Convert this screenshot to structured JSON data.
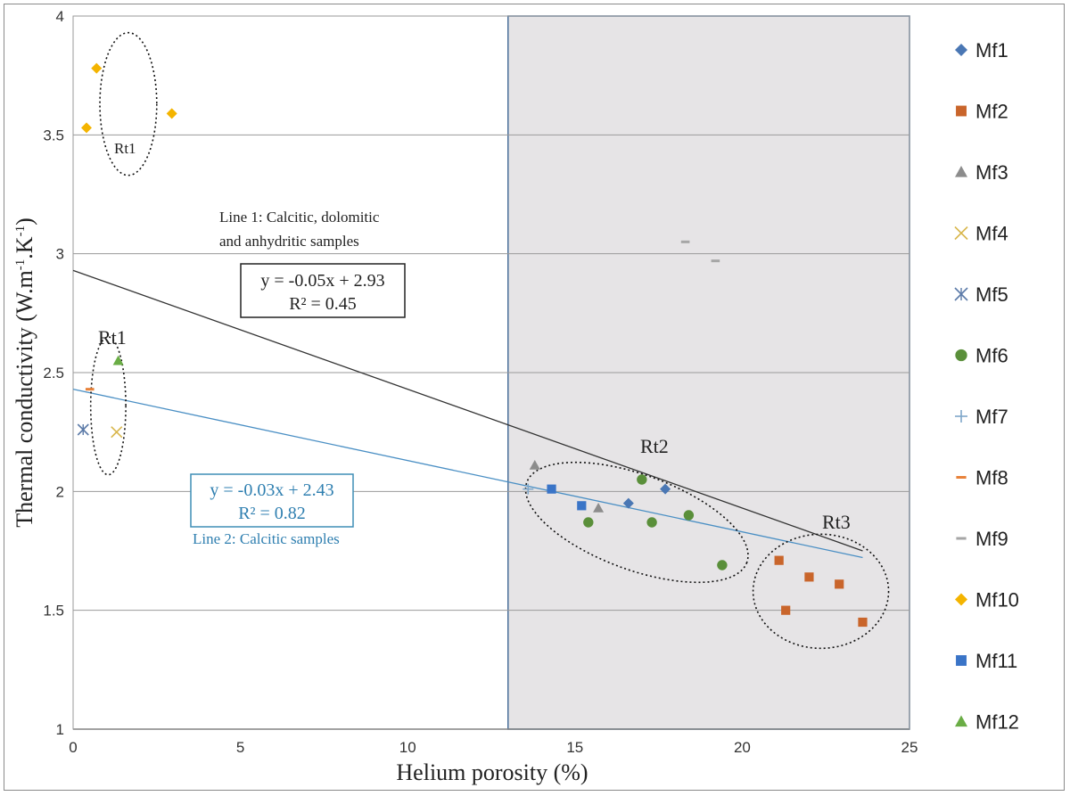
{
  "chart_data": {
    "type": "scatter",
    "xlabel": "Helium porosity (%)",
    "ylabel": "Thermal conductivity (W.m",
    "ylabel_sup1": "-1",
    "ylabel_mid": ".K",
    "ylabel_sup2": "-1",
    "ylabel_end": ")",
    "xlim": [
      0,
      25
    ],
    "ylim": [
      1,
      4
    ],
    "xticks": [
      0,
      5,
      10,
      15,
      20,
      25
    ],
    "yticks": [
      1,
      1.5,
      2,
      2.5,
      3,
      3.5,
      4
    ],
    "grid": "horizontal",
    "legend_position": "right",
    "shaded_region": {
      "x_from": 13,
      "x_to": 25,
      "color": "#e6e4e6"
    },
    "series": [
      {
        "name": "Mf1",
        "marker": "diamond",
        "color": "#4a77b4",
        "points": [
          [
            16.6,
            1.95
          ],
          [
            17.7,
            2.01
          ]
        ]
      },
      {
        "name": "Mf2",
        "marker": "square",
        "color": "#c9652b",
        "points": [
          [
            21.1,
            1.71
          ],
          [
            21.3,
            1.5
          ],
          [
            22.0,
            1.64
          ],
          [
            22.9,
            1.61
          ],
          [
            23.6,
            1.45
          ]
        ]
      },
      {
        "name": "Mf3",
        "marker": "triangle",
        "color": "#8c8c8c",
        "points": [
          [
            13.8,
            2.11
          ],
          [
            15.7,
            1.93
          ]
        ]
      },
      {
        "name": "Mf4",
        "marker": "x",
        "color": "#d8b64c",
        "points": [
          [
            1.3,
            2.25
          ]
        ]
      },
      {
        "name": "Mf5",
        "marker": "asterisk",
        "color": "#5b7aa8",
        "points": [
          [
            0.3,
            2.26
          ]
        ]
      },
      {
        "name": "Mf6",
        "marker": "circle",
        "color": "#5a8f3a",
        "points": [
          [
            15.4,
            1.87
          ],
          [
            17.0,
            2.05
          ],
          [
            17.3,
            1.87
          ],
          [
            18.4,
            1.9
          ],
          [
            19.4,
            1.69
          ]
        ]
      },
      {
        "name": "Mf7",
        "marker": "plus",
        "color": "#7fa7c9",
        "points": [
          [
            13.6,
            2.01
          ]
        ]
      },
      {
        "name": "Mf8",
        "marker": "dash",
        "color": "#e8823a",
        "points": [
          [
            0.5,
            2.43
          ]
        ]
      },
      {
        "name": "Mf9",
        "marker": "dash",
        "color": "#a6a6a6",
        "points": [
          [
            18.3,
            3.05
          ],
          [
            19.2,
            2.97
          ]
        ]
      },
      {
        "name": "Mf10",
        "marker": "diamond",
        "color": "#f4b400",
        "points": [
          [
            0.4,
            3.53
          ],
          [
            0.7,
            3.78
          ],
          [
            2.95,
            3.59
          ]
        ]
      },
      {
        "name": "Mf11",
        "marker": "square",
        "color": "#3a74c7",
        "points": [
          [
            14.3,
            2.01
          ],
          [
            15.2,
            1.94
          ]
        ]
      },
      {
        "name": "Mf12",
        "marker": "triangle",
        "color": "#6aad45",
        "points": [
          [
            1.35,
            2.55
          ]
        ]
      }
    ],
    "trendlines": [
      {
        "name": "Line 1",
        "slope": -0.05,
        "intercept": 2.93,
        "x_from": 0,
        "x_to": 23.6,
        "color": "#333333",
        "equation": "y = -0.05x + 2.93",
        "r2": "R² = 0.45",
        "caption_line1": "Line 1: Calcitic, dolomitic",
        "caption_line2": "and anhydritic samples"
      },
      {
        "name": "Line 2",
        "slope": -0.03,
        "intercept": 2.43,
        "x_from": 0,
        "x_to": 23.6,
        "color": "#4a8fc4",
        "equation": "y = -0.03x + 2.43",
        "r2": "R² = 0.82",
        "caption_line1": "Line 2: Calcitic samples"
      }
    ],
    "annotations": [
      {
        "label": "Rt1",
        "type": "upper-group"
      },
      {
        "label": "Rt1",
        "type": "lower-group"
      },
      {
        "label": "Rt2",
        "type": "middle-group"
      },
      {
        "label": "Rt3",
        "type": "right-group"
      }
    ]
  }
}
